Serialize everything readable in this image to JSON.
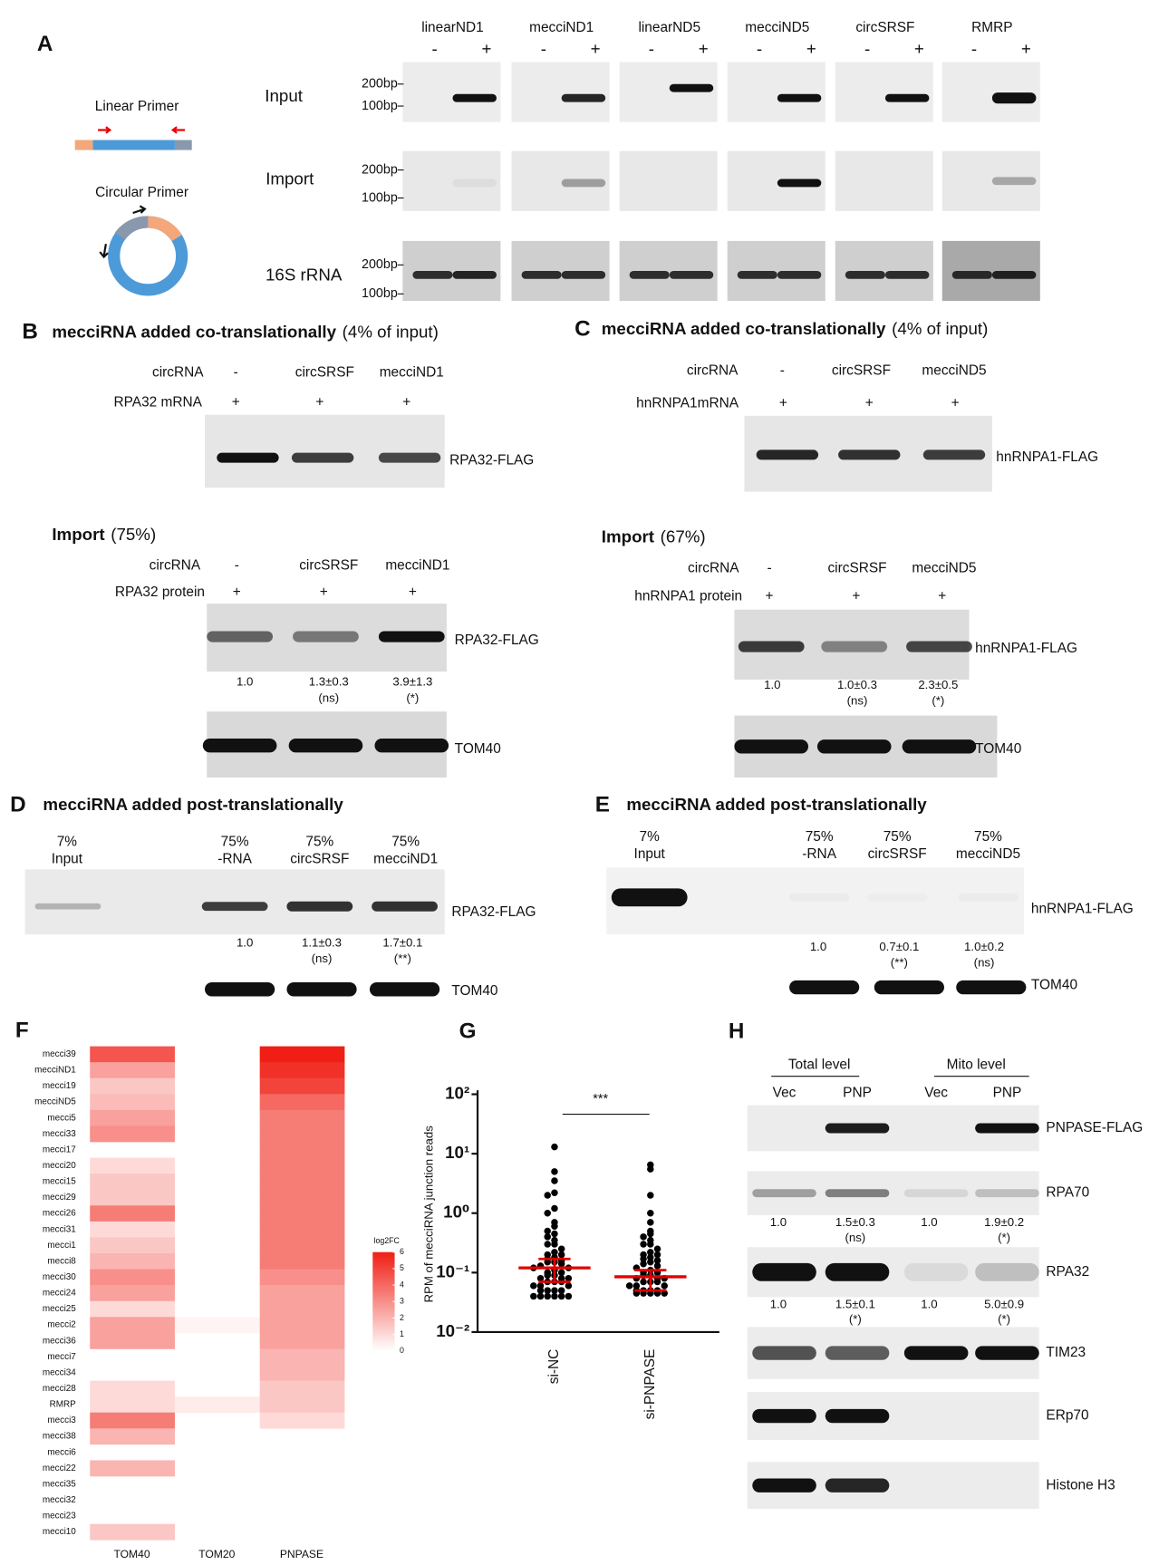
{
  "A": {
    "label": "A",
    "lanes": [
      "linearND1",
      "mecciND1",
      "linearND5",
      "mecciND5",
      "circSRSF",
      "RMRP"
    ],
    "minus": "-",
    "plus": "+",
    "rows": [
      "Input",
      "Import",
      "16S rRNA"
    ],
    "markers": [
      "200bp",
      "100bp"
    ],
    "linear_primer": "Linear Primer",
    "circular_primer": "Circular Primer"
  },
  "B": {
    "label": "B",
    "title": "mecciRNA added co-translationally",
    "title_note": "(4% of input)",
    "row1_label": "circRNA",
    "row1": [
      "-",
      "circSRSF",
      "mecciND1"
    ],
    "row2_label": "RPA32 mRNA",
    "row2": [
      "+",
      "+",
      "+"
    ],
    "blot_label": "RPA32-FLAG",
    "import": {
      "title": "Import",
      "title_note": "(75%)",
      "row1_label": "circRNA",
      "row1": [
        "-",
        "circSRSF",
        "mecciND1"
      ],
      "row2_label": "RPA32 protein",
      "row2": [
        "+",
        "+",
        "+"
      ],
      "blot_label": "RPA32-FLAG",
      "quant": [
        "1.0",
        "1.3±0.3",
        "3.9±1.3"
      ],
      "significance": [
        "(ns)",
        "(*)"
      ],
      "loading_label": "TOM40"
    }
  },
  "C": {
    "label": "C",
    "title": "mecciRNA added co-translationally",
    "title_note": "(4% of input)",
    "row1_label": "circRNA",
    "row1": [
      "-",
      "circSRSF",
      "mecciND5"
    ],
    "row2_label": "hnRNPA1mRNA",
    "row2": [
      "+",
      "+",
      "+"
    ],
    "blot_label": "hnRNPA1-FLAG",
    "import": {
      "title": "Import",
      "title_note": "(67%)",
      "row1_label": "circRNA",
      "row1": [
        "-",
        "circSRSF",
        "mecciND5"
      ],
      "row2_label": "hnRNPA1 protein",
      "row2": [
        "+",
        "+",
        "+"
      ],
      "blot_label": "hnRNPA1-FLAG",
      "quant": [
        "1.0",
        "1.0±0.3",
        "2.3±0.5"
      ],
      "significance": [
        "(ns)",
        "(*)"
      ],
      "loading_label": "TOM40"
    }
  },
  "D": {
    "label": "D",
    "title": "mecciRNA added post-translationally",
    "lanes": [
      [
        "7%",
        "Input"
      ],
      [
        "75%",
        "-RNA"
      ],
      [
        "75%",
        "circSRSF"
      ],
      [
        "75%",
        "mecciND1"
      ]
    ],
    "blot_label": "RPA32-FLAG",
    "quant": [
      "1.0",
      "1.1±0.3",
      "1.7±0.1"
    ],
    "significance": [
      "(ns)",
      "(**)"
    ],
    "loading_label": "TOM40"
  },
  "E": {
    "label": "E",
    "title": "mecciRNA added post-translationally",
    "lanes": [
      [
        "7%",
        "Input"
      ],
      [
        "75%",
        "-RNA"
      ],
      [
        "75%",
        "circSRSF"
      ],
      [
        "75%",
        "mecciND5"
      ]
    ],
    "blot_label": "hnRNPA1-FLAG",
    "quant": [
      "1.0",
      "0.7±0.1",
      "1.0±0.2"
    ],
    "significance": [
      "(**)",
      "(ns)"
    ],
    "loading_label": "TOM40"
  },
  "F": {
    "label": "F",
    "rows": [
      "mecci39",
      "mecciND1",
      "mecci19",
      "mecciND5",
      "mecci5",
      "mecci33",
      "mecci17",
      "mecci20",
      "mecci15",
      "mecci29",
      "mecci26",
      "mecci31",
      "mecci1",
      "mecci8",
      "mecci30",
      "mecci24",
      "mecci25",
      "mecci2",
      "mecci36",
      "mecci7",
      "mecci34",
      "mecci28",
      "RMRP",
      "mecci3",
      "mecci38",
      "mecci6",
      "mecci22",
      "mecci35",
      "mecci32",
      "mecci23",
      "mecci10"
    ],
    "columns": [
      "TOM40",
      "TOM20",
      "PNPASE"
    ],
    "values": [
      [
        4.5,
        2.5,
        1.5,
        1.8,
        2.5,
        3,
        null,
        1,
        1.5,
        1.5,
        3.5,
        1,
        1.5,
        2,
        3,
        2.5,
        1,
        2.5,
        2.5,
        null,
        null,
        1,
        1,
        3.5,
        2,
        null,
        2,
        null,
        null,
        null,
        1.5
      ],
      [
        null,
        null,
        null,
        null,
        null,
        null,
        null,
        null,
        null,
        null,
        null,
        null,
        null,
        null,
        null,
        null,
        null,
        0.3,
        null,
        null,
        null,
        null,
        0.5,
        null,
        null,
        null,
        null,
        null,
        null,
        null,
        null
      ],
      [
        6,
        5.5,
        5,
        4,
        3.5,
        3.5,
        3.5,
        3.5,
        3.5,
        3.5,
        3.5,
        3.5,
        3.5,
        3.5,
        3,
        2.5,
        2.5,
        2.5,
        2.5,
        2,
        2,
        1.5,
        1.5,
        1,
        null,
        null,
        null,
        null,
        null,
        null,
        null
      ]
    ],
    "legend_title": "log2FC",
    "legend_lim": [
      0,
      6
    ],
    "legend_ticks": [
      0,
      1,
      2,
      3,
      4,
      5,
      6
    ]
  },
  "G": {
    "label": "G"
  },
  "chart_data": {
    "type": "strip",
    "ylabel": "RPM of mecciRNA junction reads",
    "log_y": true,
    "ylim": [
      0.01,
      100
    ],
    "yticks": [
      {
        "value": 100,
        "label": "10²"
      },
      {
        "value": 10,
        "label": "10¹"
      },
      {
        "value": 1,
        "label": "10⁰"
      },
      {
        "value": 0.1,
        "label": "10⁻¹"
      },
      {
        "value": 0.01,
        "label": "10⁻²"
      }
    ],
    "categories": [
      "si-NC",
      "si-PNPASE"
    ],
    "annotation": "***",
    "color": "#000000",
    "mean_color": "#e00000",
    "values": [
      [
        13,
        5,
        3.5,
        2.2,
        2,
        1.2,
        1,
        0.7,
        0.6,
        0.5,
        0.45,
        0.4,
        0.35,
        0.3,
        0.3,
        0.25,
        0.22,
        0.2,
        0.2,
        0.18,
        0.17,
        0.16,
        0.15,
        0.15,
        0.14,
        0.13,
        0.12,
        0.12,
        0.11,
        0.1,
        0.1,
        0.09,
        0.09,
        0.08,
        0.08,
        0.08,
        0.07,
        0.07,
        0.07,
        0.06,
        0.06,
        0.06,
        0.05,
        0.05,
        0.05,
        0.05,
        0.04,
        0.04,
        0.04,
        0.04,
        0.04,
        0.04
      ],
      [
        6.5,
        5.5,
        2,
        1,
        0.7,
        0.5,
        0.45,
        0.4,
        0.35,
        0.3,
        0.3,
        0.25,
        0.22,
        0.2,
        0.2,
        0.18,
        0.17,
        0.16,
        0.15,
        0.14,
        0.13,
        0.12,
        0.11,
        0.1,
        0.1,
        0.09,
        0.09,
        0.08,
        0.08,
        0.08,
        0.07,
        0.07,
        0.07,
        0.06,
        0.06,
        0.06,
        0.05,
        0.05,
        0.05,
        0.05,
        0.045,
        0.045,
        0.045,
        0.045,
        0.045
      ]
    ],
    "means": [
      0.12,
      0.085
    ],
    "error_low": [
      0.07,
      0.05
    ],
    "error_high": [
      0.17,
      0.11
    ]
  },
  "H": {
    "label": "H",
    "groups": [
      "Total level",
      "Mito level"
    ],
    "lanes": [
      "Vec",
      "PNP",
      "Vec",
      "PNP"
    ],
    "blots": [
      {
        "name": "PNPASE-FLAG"
      },
      {
        "name": "RPA70",
        "quant": [
          "1.0",
          "1.5±0.3",
          "1.0",
          "1.9±0.2"
        ],
        "significance": [
          "(ns)",
          "(*)"
        ]
      },
      {
        "name": "RPA32",
        "quant": [
          "1.0",
          "1.5±0.1",
          "1.0",
          "5.0±0.9"
        ],
        "significance": [
          "(*)",
          "(*)"
        ]
      },
      {
        "name": "TIM23"
      },
      {
        "name": "ERp70"
      },
      {
        "name": "Histone H3"
      }
    ]
  }
}
